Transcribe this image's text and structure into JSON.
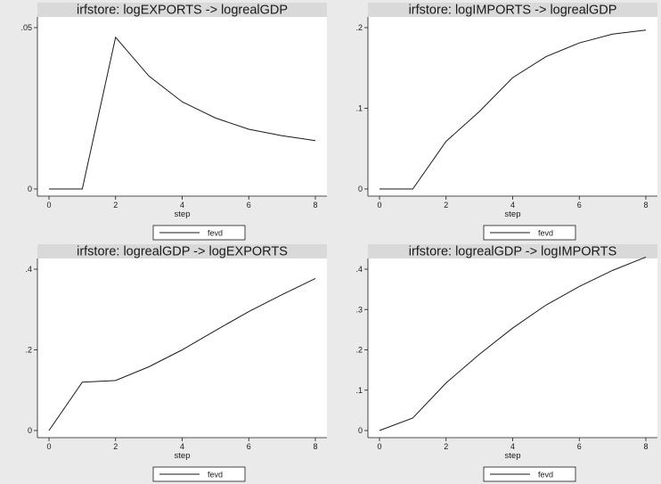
{
  "chart_data": [
    {
      "type": "line",
      "title": "irfstore: logEXPORTS -> logrealGDP",
      "xlabel": "step",
      "ylabel": "",
      "x": [
        0,
        1,
        2,
        3,
        4,
        5,
        6,
        7,
        8
      ],
      "xticks": [
        0,
        2,
        4,
        6,
        8
      ],
      "xlim": [
        0,
        8
      ],
      "yticks": [
        0,
        0.05
      ],
      "ytick_labels": [
        "0",
        ".05"
      ],
      "ylim": [
        0,
        0.05
      ],
      "grid": false,
      "legend": "bottom-center",
      "series": [
        {
          "name": "fevd",
          "values": [
            0,
            0,
            0.047,
            0.035,
            0.027,
            0.022,
            0.0185,
            0.0165,
            0.015
          ]
        }
      ]
    },
    {
      "type": "line",
      "title": "irfstore: logIMPORTS -> logrealGDP",
      "xlabel": "step",
      "ylabel": "",
      "x": [
        0,
        1,
        2,
        3,
        4,
        5,
        6,
        7,
        8
      ],
      "xticks": [
        0,
        2,
        4,
        6,
        8
      ],
      "xlim": [
        0,
        8
      ],
      "yticks": [
        0,
        0.1,
        0.2
      ],
      "ytick_labels": [
        "0",
        ".1",
        ".2"
      ],
      "ylim": [
        0,
        0.2
      ],
      "grid": false,
      "legend": "bottom-center",
      "series": [
        {
          "name": "fevd",
          "values": [
            0,
            0,
            0.059,
            0.096,
            0.138,
            0.164,
            0.181,
            0.192,
            0.197
          ]
        }
      ]
    },
    {
      "type": "line",
      "title": "irfstore: logrealGDP -> logEXPORTS",
      "xlabel": "step",
      "ylabel": "",
      "x": [
        0,
        1,
        2,
        3,
        4,
        5,
        6,
        7,
        8
      ],
      "xticks": [
        0,
        2,
        4,
        6,
        8
      ],
      "xlim": [
        0,
        8
      ],
      "yticks": [
        0,
        0.2,
        0.4
      ],
      "ytick_labels": [
        "0",
        ".2",
        ".4"
      ],
      "ylim": [
        0,
        0.4
      ],
      "grid": false,
      "legend": "bottom-center",
      "series": [
        {
          "name": "fevd",
          "values": [
            0,
            0.12,
            0.124,
            0.158,
            0.2,
            0.248,
            0.295,
            0.337,
            0.377
          ]
        }
      ]
    },
    {
      "type": "line",
      "title": "irfstore: logrealGDP -> logIMPORTS",
      "xlabel": "step",
      "ylabel": "",
      "x": [
        0,
        1,
        2,
        3,
        4,
        5,
        6,
        7,
        8
      ],
      "xticks": [
        0,
        2,
        4,
        6,
        8
      ],
      "xlim": [
        0,
        8
      ],
      "yticks": [
        0,
        0.1,
        0.2,
        0.3,
        0.4
      ],
      "ytick_labels": [
        "0",
        ".1",
        ".2",
        ".3",
        ".4"
      ],
      "ylim": [
        0,
        0.4
      ],
      "grid": false,
      "legend": "bottom-center",
      "series": [
        {
          "name": "fevd",
          "values": [
            0,
            0.031,
            0.118,
            0.189,
            0.254,
            0.311,
            0.357,
            0.397,
            0.43
          ]
        }
      ]
    }
  ],
  "colors": {
    "background": "#eaeaea",
    "plot_area": "#ffffff",
    "title_bar": "#d9d9d9",
    "line": "#1a1a1a"
  }
}
